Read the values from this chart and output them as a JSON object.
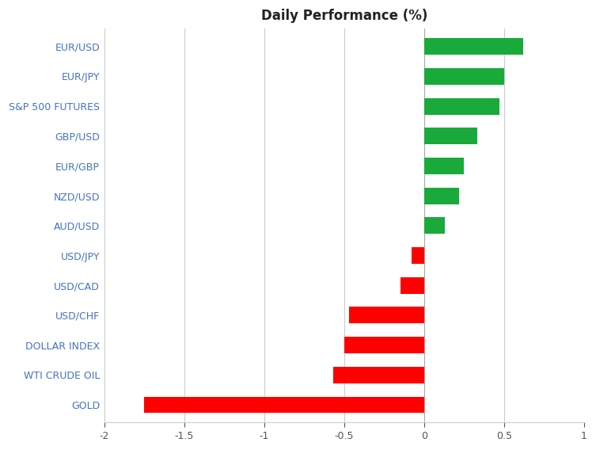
{
  "categories": [
    "EUR/USD",
    "EUR/JPY",
    "S&P 500 FUTURES",
    "GBP/USD",
    "EUR/GBP",
    "NZD/USD",
    "AUD/USD",
    "USD/JPY",
    "USD/CAD",
    "USD/CHF",
    "DOLLAR INDEX",
    "WTI CRUDE OIL",
    "GOLD"
  ],
  "values": [
    0.62,
    0.5,
    0.47,
    0.33,
    0.25,
    0.22,
    0.13,
    -0.08,
    -0.15,
    -0.47,
    -0.5,
    -0.57,
    -1.75
  ],
  "positive_color": "#1aaa3c",
  "negative_color": "#ff0000",
  "title": "Daily Performance (%)",
  "xlim": [
    -2.0,
    1.0
  ],
  "xticks": [
    -2.0,
    -1.5,
    -1.0,
    -0.5,
    0.0,
    0.5,
    1.0
  ],
  "xtick_labels": [
    "-2",
    "-1.5",
    "-1",
    "-0.5",
    "0",
    "0.5",
    "1"
  ],
  "background_color": "#ffffff",
  "label_color": "#4472c4",
  "title_fontsize": 12,
  "tick_fontsize": 9,
  "label_fontsize": 9,
  "bar_height": 0.55,
  "figwidth": 7.53,
  "figheight": 5.68
}
